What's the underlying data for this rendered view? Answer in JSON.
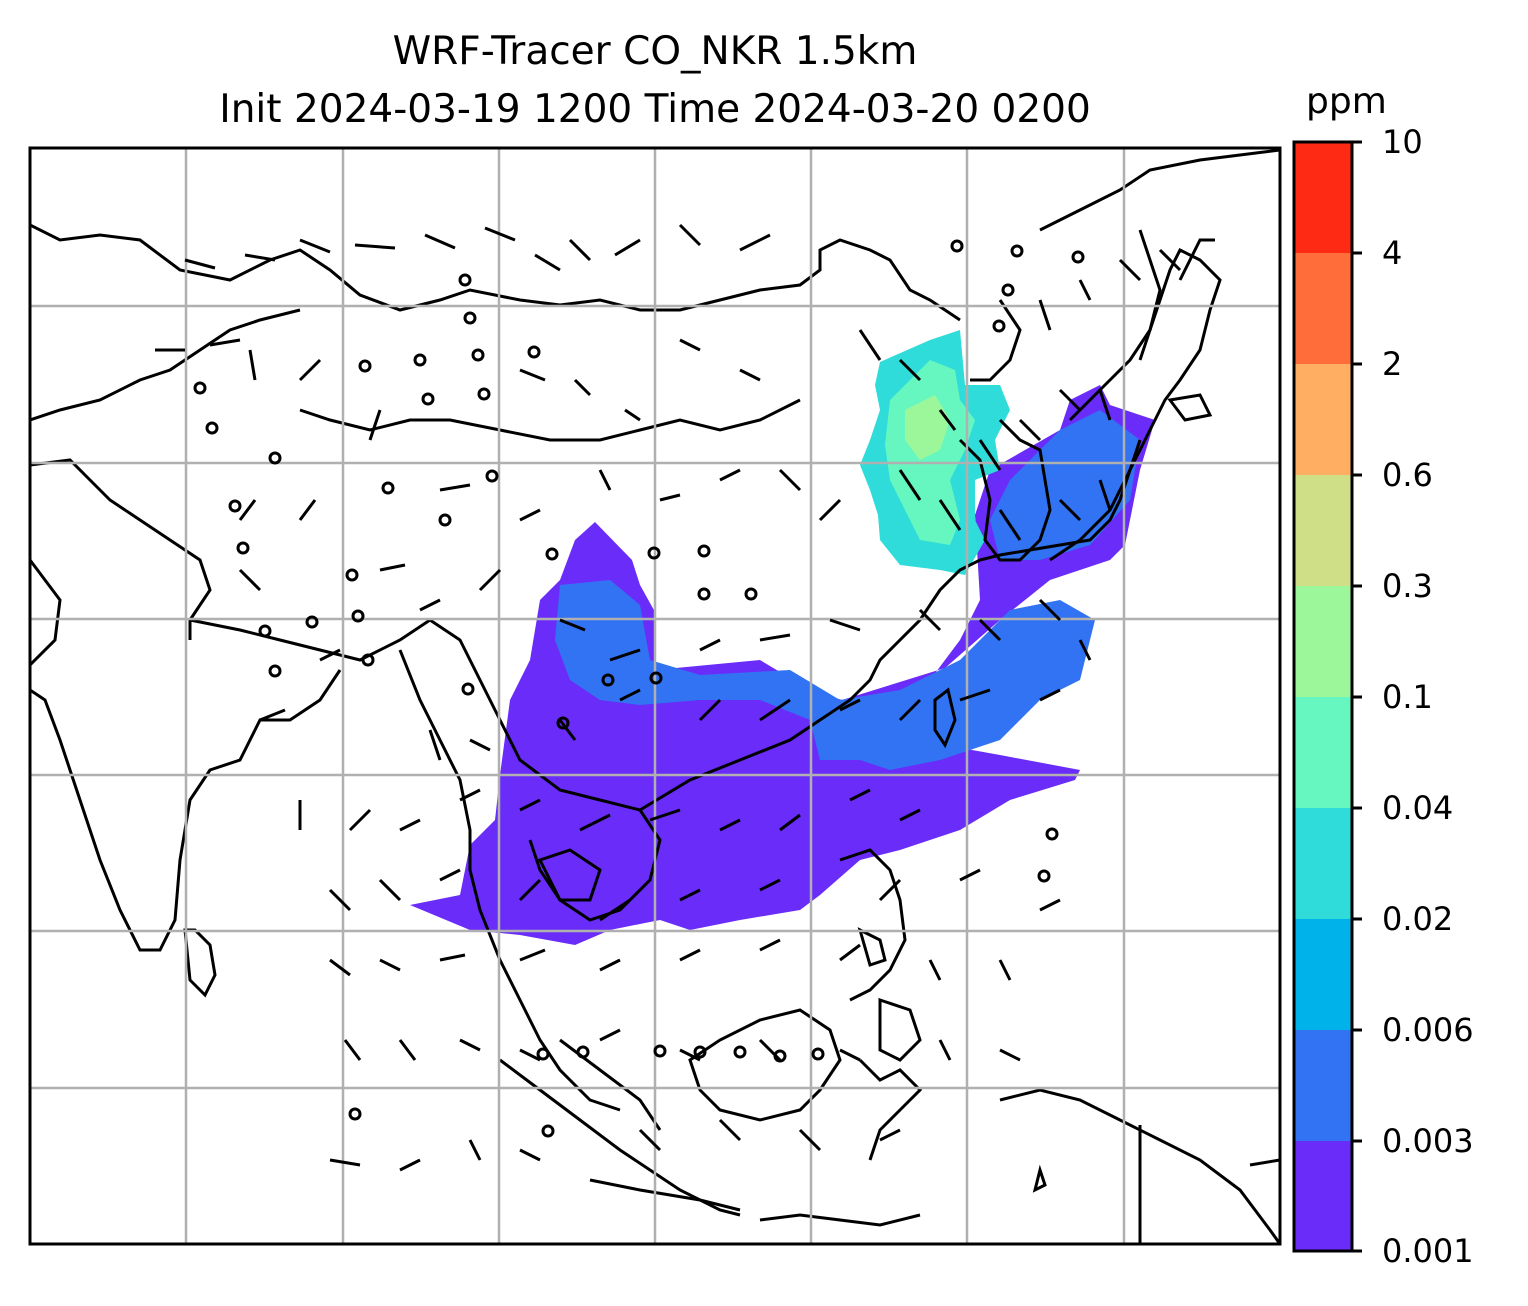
{
  "title": {
    "line1": "WRF-Tracer CO_NKR 1.5km",
    "line2": "Init 2024-03-19 1200 Time 2024-03-20 0200"
  },
  "map": {
    "gridlines": true,
    "gridline_color": "#b0b0b0",
    "coastline_color": "#000000",
    "wind_barbs": true
  },
  "colorbar": {
    "unit": "ppm",
    "ticks": [
      "10",
      "4",
      "2",
      "0.6",
      "0.3",
      "0.1",
      "0.04",
      "0.02",
      "0.006",
      "0.003",
      "0.001"
    ],
    "colors": [
      "#ff2a14",
      "#ff6e3a",
      "#ffae62",
      "#cfdf88",
      "#9cf79a",
      "#66f7c1",
      "#2fdcd9",
      "#00b2ea",
      "#3173f2",
      "#6a2cf9"
    ]
  }
}
